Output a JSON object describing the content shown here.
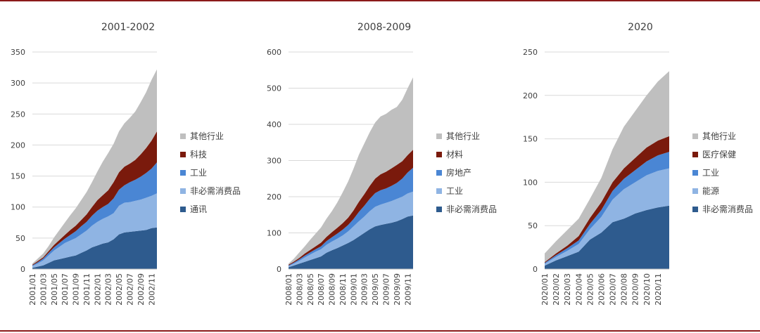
{
  "frame_color": "#8b1a1a",
  "chart_data": [
    {
      "type": "area",
      "title": "2001-2002",
      "ylim": [
        0,
        350
      ],
      "yticks": [
        0,
        50,
        100,
        150,
        200,
        250,
        300,
        350
      ],
      "x": [
        "2001/01",
        "2001/02",
        "2001/03",
        "2001/04",
        "2001/05",
        "2001/06",
        "2001/07",
        "2001/08",
        "2001/09",
        "2001/10",
        "2001/11",
        "2001/12",
        "2002/01",
        "2002/02",
        "2002/03",
        "2002/04",
        "2002/05",
        "2002/06",
        "2002/07",
        "2002/08",
        "2002/09",
        "2002/10",
        "2002/11",
        "2002/12"
      ],
      "xtick_labels": [
        "2001/01",
        "2001/03",
        "2001/05",
        "2001/07",
        "2001/09",
        "2001/11",
        "2002/01",
        "2002/03",
        "2002/05",
        "2002/07",
        "2002/09",
        "2002/11"
      ],
      "series": [
        {
          "name": "通讯",
          "color": "#2e5b8e",
          "values": [
            2,
            4,
            6,
            10,
            14,
            16,
            18,
            20,
            22,
            26,
            30,
            35,
            38,
            41,
            43,
            48,
            56,
            59,
            60,
            61,
            62,
            63,
            66,
            67
          ]
        },
        {
          "name": "非必需消费品",
          "color": "#8fb4e3",
          "values": [
            3,
            5,
            8,
            12,
            16,
            20,
            24,
            26,
            28,
            30,
            32,
            35,
            38,
            40,
            42,
            42,
            46,
            48,
            48,
            49,
            50,
            52,
            52,
            55
          ]
        },
        {
          "name": "工业",
          "color": "#4a86d4",
          "values": [
            1,
            2,
            3,
            4,
            5,
            6,
            7,
            9,
            11,
            13,
            14,
            16,
            18,
            19,
            20,
            24,
            26,
            28,
            32,
            34,
            37,
            40,
            44,
            50
          ]
        },
        {
          "name": "科技",
          "color": "#7a1a0c",
          "values": [
            1,
            2,
            2,
            3,
            4,
            5,
            6,
            8,
            9,
            10,
            12,
            14,
            17,
            19,
            22,
            26,
            28,
            30,
            30,
            32,
            36,
            40,
            45,
            50
          ]
        },
        {
          "name": "其他行业",
          "color": "#bfbfbf",
          "values": [
            2,
            4,
            6,
            8,
            12,
            16,
            20,
            24,
            28,
            32,
            36,
            40,
            46,
            54,
            60,
            62,
            66,
            70,
            74,
            78,
            84,
            90,
            98,
            100
          ]
        }
      ],
      "legend": [
        "其他行业",
        "科技",
        "工业",
        "非必需消费品",
        "通讯"
      ]
    },
    {
      "type": "area",
      "title": "2008-2009",
      "ylim": [
        0,
        600
      ],
      "yticks": [
        0,
        100,
        200,
        300,
        400,
        500,
        600
      ],
      "x": [
        "2008/01",
        "2008/02",
        "2008/03",
        "2008/04",
        "2008/05",
        "2008/06",
        "2008/07",
        "2008/08",
        "2008/09",
        "2008/10",
        "2008/11",
        "2008/12",
        "2009/01",
        "2009/02",
        "2009/03",
        "2009/04",
        "2009/05",
        "2009/06",
        "2009/07",
        "2009/08",
        "2009/09",
        "2009/10",
        "2009/11",
        "2009/12"
      ],
      "xtick_labels": [
        "2008/01",
        "2008/03",
        "2008/05",
        "2008/07",
        "2008/09",
        "2008/11",
        "2009/01",
        "2009/03",
        "2009/05",
        "2009/07",
        "2009/09",
        "2009/11"
      ],
      "series": [
        {
          "name": "非必需消费品",
          "color": "#2e5b8e",
          "values": [
            5,
            10,
            15,
            20,
            25,
            30,
            35,
            45,
            52,
            58,
            65,
            72,
            80,
            90,
            100,
            110,
            118,
            122,
            125,
            128,
            132,
            138,
            145,
            148
          ]
        },
        {
          "name": "工业",
          "color": "#8fb4e3",
          "values": [
            3,
            5,
            8,
            12,
            15,
            18,
            20,
            22,
            24,
            26,
            28,
            32,
            38,
            42,
            45,
            50,
            54,
            56,
            58,
            60,
            62,
            62,
            64,
            66
          ]
        },
        {
          "name": "房地产",
          "color": "#4a86d4",
          "values": [
            2,
            3,
            4,
            5,
            6,
            7,
            8,
            10,
            12,
            14,
            16,
            18,
            20,
            26,
            30,
            34,
            38,
            40,
            40,
            42,
            44,
            50,
            58,
            66
          ]
        },
        {
          "name": "材料",
          "color": "#7a1a0c",
          "values": [
            2,
            3,
            4,
            6,
            7,
            8,
            10,
            12,
            14,
            16,
            18,
            20,
            24,
            28,
            32,
            36,
            40,
            44,
            46,
            48,
            50,
            48,
            48,
            50
          ]
        },
        {
          "name": "其他行业",
          "color": "#bfbfbf",
          "values": [
            3,
            8,
            15,
            20,
            28,
            35,
            42,
            50,
            58,
            70,
            85,
            100,
            115,
            130,
            140,
            148,
            155,
            160,
            160,
            162,
            160,
            170,
            185,
            200
          ]
        }
      ],
      "legend": [
        "其他行业",
        "材料",
        "房地产",
        "工业",
        "非必需消费品"
      ]
    },
    {
      "type": "area",
      "title": "2020",
      "ylim": [
        0,
        250
      ],
      "yticks": [
        0,
        50,
        100,
        150,
        200,
        250
      ],
      "x": [
        "2020/01",
        "2020/02",
        "2020/03",
        "2020/04",
        "2020/05",
        "2020/06",
        "2020/07",
        "2020/08",
        "2020/09",
        "2020/10",
        "2020/11",
        "2020/12"
      ],
      "xtick_labels": [
        "2020/01",
        "2020/02",
        "2020/03",
        "2020/04",
        "2020/05",
        "2020/06",
        "2020/07",
        "2020/08",
        "2020/09",
        "2020/10",
        "2020/11"
      ],
      "series": [
        {
          "name": "非必需消费品",
          "color": "#2e5b8e",
          "values": [
            4,
            10,
            15,
            20,
            34,
            42,
            54,
            58,
            64,
            68,
            71,
            73
          ]
        },
        {
          "name": "能源",
          "color": "#8fb4e3",
          "values": [
            2,
            4,
            6,
            9,
            12,
            18,
            26,
            34,
            36,
            40,
            42,
            43
          ]
        },
        {
          "name": "工业",
          "color": "#4a86d4",
          "values": [
            1,
            2,
            3,
            4,
            6,
            8,
            10,
            12,
            14,
            16,
            18,
            19
          ]
        },
        {
          "name": "医疗保健",
          "color": "#7a1a0c",
          "values": [
            1,
            2,
            3,
            5,
            7,
            9,
            10,
            12,
            14,
            16,
            17,
            18
          ]
        },
        {
          "name": "其他行业",
          "color": "#bfbfbf",
          "values": [
            10,
            14,
            18,
            20,
            22,
            28,
            38,
            48,
            54,
            60,
            68,
            75
          ]
        }
      ],
      "legend": [
        "其他行业",
        "医疗保健",
        "工业",
        "能源",
        "非必需消费品"
      ]
    }
  ]
}
